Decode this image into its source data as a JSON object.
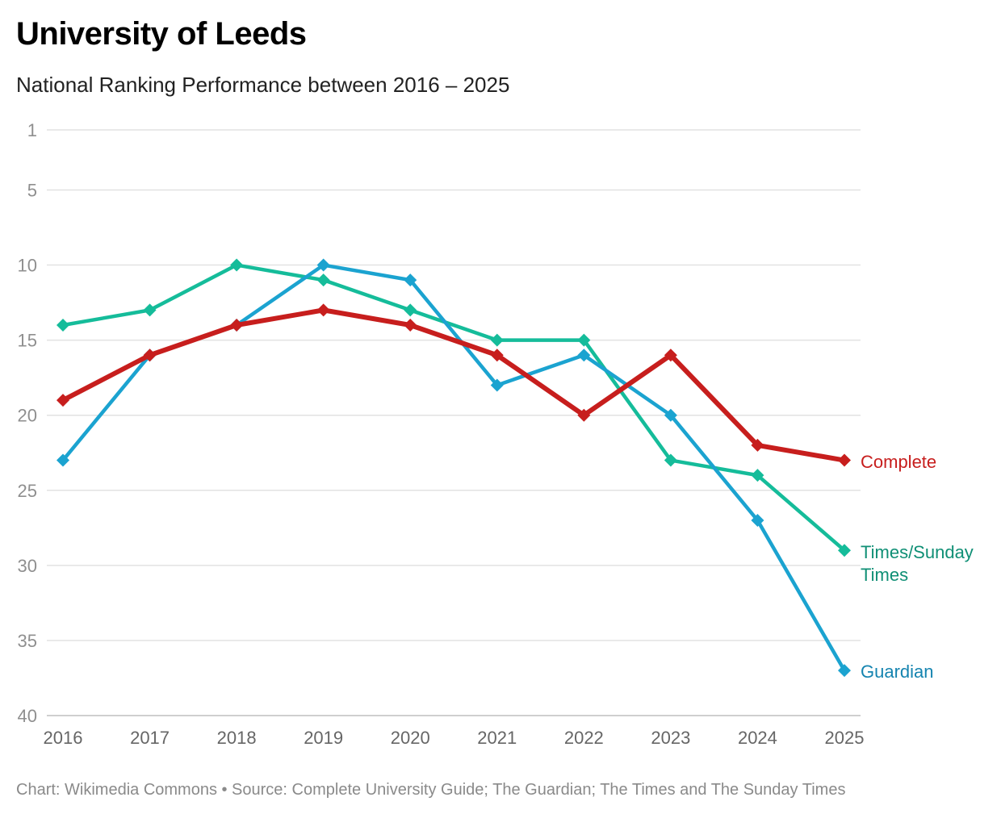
{
  "title": "University of Leeds",
  "subtitle": "National Ranking Performance between 2016 – 2025",
  "footer": "Chart: Wikimedia Commons • Source: Complete University Guide; The Guardian; The Times and The Sunday Times",
  "chart_data": {
    "type": "line",
    "title": "University of Leeds",
    "subtitle": "National Ranking Performance between 2016 – 2025",
    "x": [
      2016,
      2017,
      2018,
      2019,
      2020,
      2021,
      2022,
      2023,
      2024,
      2025
    ],
    "y_ticks": [
      1,
      5,
      10,
      15,
      20,
      25,
      30,
      35,
      40
    ],
    "ylim": [
      1,
      40
    ],
    "y_inverted": true,
    "grid": true,
    "legend": "inline labels at line ends (right)",
    "marker": "diamond",
    "series": [
      {
        "name": "Times/Sunday Times",
        "label_lines": [
          "Times/Sunday",
          "Times"
        ],
        "color": "#15bc9a",
        "label_color": "#0f8f75",
        "values": [
          14,
          13,
          10,
          11,
          13,
          15,
          15,
          23,
          24,
          29
        ]
      },
      {
        "name": "Guardian",
        "label_lines": [
          "Guardian"
        ],
        "color": "#1ba3d0",
        "label_color": "#1584b0",
        "values": [
          23,
          16,
          14,
          10,
          11,
          18,
          16,
          20,
          27,
          37
        ]
      },
      {
        "name": "Complete",
        "label_lines": [
          "Complete"
        ],
        "color": "#c71e1d",
        "label_color": "#c71e1d",
        "values": [
          19,
          16,
          14,
          13,
          14,
          16,
          20,
          16,
          22,
          23
        ]
      }
    ]
  }
}
